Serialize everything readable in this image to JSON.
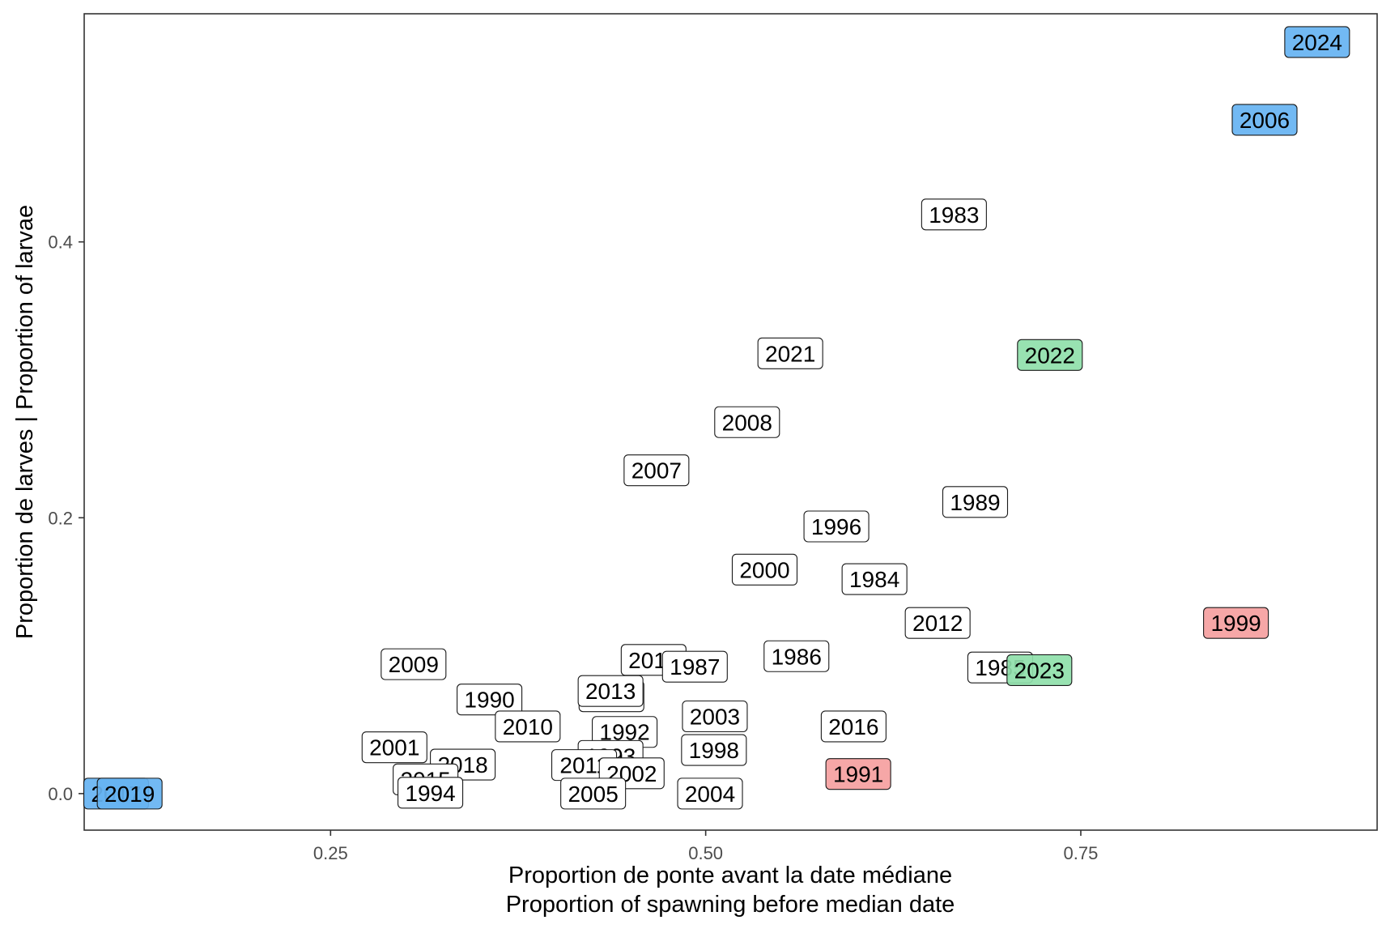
{
  "chart_data": {
    "type": "scatter",
    "xlabel": "Proportion de ponte avant la date médiane",
    "xlabel_line2": "Proportion of spawning before median date",
    "ylabel": "Proportion de larves | Proportion of larvae",
    "xlim": [
      0.0858,
      0.9475
    ],
    "ylim": [
      -0.0265,
      0.5654
    ],
    "xticks": [
      {
        "value": 0.25,
        "label": "0.25"
      },
      {
        "value": 0.5,
        "label": "0.50"
      },
      {
        "value": 0.75,
        "label": "0.75"
      }
    ],
    "yticks": [
      {
        "value": 0.0,
        "label": "0.0"
      },
      {
        "value": 0.2,
        "label": "0.2"
      },
      {
        "value": 0.4,
        "label": "0.4"
      }
    ],
    "grid": false,
    "category_colors": {
      "none": "#ffffff",
      "blue": "#66b3f2",
      "green": "#8fdfaa",
      "red": "#f5a0a0"
    },
    "points": [
      {
        "label": "2024",
        "x": 0.9075,
        "y": 0.5449,
        "fill": "blue"
      },
      {
        "label": "2006",
        "x": 0.8725,
        "y": 0.4885,
        "fill": "blue"
      },
      {
        "label": "1983",
        "x": 0.6655,
        "y": 0.4199,
        "fill": "none"
      },
      {
        "label": "2021",
        "x": 0.5564,
        "y": 0.3192,
        "fill": "none"
      },
      {
        "label": "2022",
        "x": 0.7294,
        "y": 0.318,
        "fill": "green"
      },
      {
        "label": "2008",
        "x": 0.5276,
        "y": 0.2693,
        "fill": "none"
      },
      {
        "label": "2007",
        "x": 0.4672,
        "y": 0.2344,
        "fill": "none"
      },
      {
        "label": "1989",
        "x": 0.6796,
        "y": 0.2114,
        "fill": "none"
      },
      {
        "label": "1996",
        "x": 0.5871,
        "y": 0.1937,
        "fill": "none"
      },
      {
        "label": "2000",
        "x": 0.5393,
        "y": 0.1624,
        "fill": "none"
      },
      {
        "label": "1984",
        "x": 0.6125,
        "y": 0.1555,
        "fill": "none"
      },
      {
        "label": "2012",
        "x": 0.6546,
        "y": 0.1237,
        "fill": "none"
      },
      {
        "label": "1999",
        "x": 0.8534,
        "y": 0.1237,
        "fill": "red"
      },
      {
        "label": "2009",
        "x": 0.3053,
        "y": 0.0938,
        "fill": "none"
      },
      {
        "label": "1986",
        "x": 0.5605,
        "y": 0.0996,
        "fill": "none"
      },
      {
        "label": "2014",
        "x": 0.4653,
        "y": 0.0969,
        "fill": "none"
      },
      {
        "label": "1987",
        "x": 0.4928,
        "y": 0.092,
        "fill": "none"
      },
      {
        "label": "1985",
        "x": 0.6963,
        "y": 0.0914,
        "fill": "none"
      },
      {
        "label": "2023",
        "x": 0.7224,
        "y": 0.0895,
        "fill": "green"
      },
      {
        "label": "1988",
        "x": 0.4372,
        "y": 0.0706,
        "fill": "none"
      },
      {
        "label": "2013",
        "x": 0.4366,
        "y": 0.0744,
        "fill": "none"
      },
      {
        "label": "1990",
        "x": 0.3559,
        "y": 0.0682,
        "fill": "none"
      },
      {
        "label": "2010",
        "x": 0.3814,
        "y": 0.0487,
        "fill": "none"
      },
      {
        "label": "2003",
        "x": 0.5061,
        "y": 0.056,
        "fill": "none"
      },
      {
        "label": "2016",
        "x": 0.5986,
        "y": 0.0487,
        "fill": "none"
      },
      {
        "label": "1992",
        "x": 0.446,
        "y": 0.0447,
        "fill": "none"
      },
      {
        "label": "1998",
        "x": 0.5055,
        "y": 0.0316,
        "fill": "none"
      },
      {
        "label": "2001",
        "x": 0.2926,
        "y": 0.0336,
        "fill": "none"
      },
      {
        "label": "1993",
        "x": 0.4366,
        "y": 0.0273,
        "fill": "none"
      },
      {
        "label": "2011",
        "x": 0.419,
        "y": 0.0207,
        "fill": "none"
      },
      {
        "label": "2018",
        "x": 0.3381,
        "y": 0.021,
        "fill": "none"
      },
      {
        "label": "2002",
        "x": 0.4507,
        "y": 0.0147,
        "fill": "none"
      },
      {
        "label": "1991",
        "x": 0.6017,
        "y": 0.0142,
        "fill": "red"
      },
      {
        "label": "2015",
        "x": 0.3133,
        "y": 0.0103,
        "fill": "none"
      },
      {
        "label": "1994",
        "x": 0.3165,
        "y": 0.0006,
        "fill": "none"
      },
      {
        "label": "2005",
        "x": 0.425,
        "y": 0.0,
        "fill": "none"
      },
      {
        "label": "2004",
        "x": 0.5029,
        "y": 0.0,
        "fill": "none"
      },
      {
        "label": "2017",
        "x": 0.1071,
        "y": 0.0,
        "fill": "blue"
      },
      {
        "label": "2019",
        "x": 0.1161,
        "y": 0.0,
        "fill": "blue"
      }
    ]
  }
}
